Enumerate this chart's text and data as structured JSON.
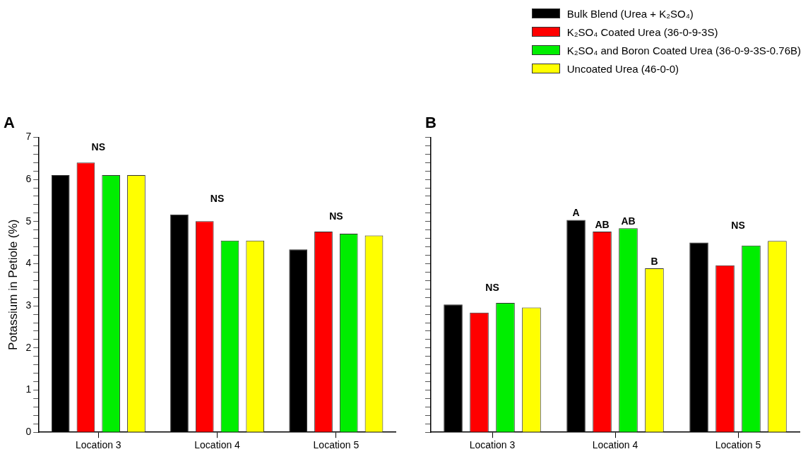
{
  "chart_data": [
    {
      "type": "bar",
      "title": "A",
      "ylabel": "Potassium in Petiole (%)",
      "categories": [
        "Location 3",
        "Location 4",
        "Location 5"
      ],
      "series": [
        {
          "name": "Bulk Blend (Urea + K₂SO₄)",
          "color": "#000000",
          "values": [
            6.1,
            5.17,
            4.34
          ]
        },
        {
          "name": "K₂SO₄ Coated Urea (36-0-9-3S)",
          "color": "#ff0000",
          "values": [
            6.4,
            5.01,
            4.76
          ]
        },
        {
          "name": "K₂SO₄ and Boron Coated Urea  (36-0-9-3S-0.76B)",
          "color": "#00ee00",
          "values": [
            6.1,
            4.55,
            4.71
          ]
        },
        {
          "name": "Uncoated Urea (46-0-0)",
          "color": "#ffff00",
          "values": [
            6.1,
            4.55,
            4.67
          ]
        }
      ],
      "ylim": [
        0,
        7
      ],
      "yticks": [
        0,
        {
          "value": 0.2,
          "label": null
        },
        {
          "value": 0.4,
          "label": null
        },
        {
          "value": 0.6,
          "label": null
        },
        {
          "value": 0.8,
          "label": null
        },
        1,
        {
          "value": 1.2,
          "label": null
        },
        {
          "value": 1.4,
          "label": null
        },
        {
          "value": 1.6,
          "label": null
        },
        {
          "value": 1.8,
          "label": null
        },
        2,
        {
          "value": 2.2,
          "label": null
        },
        {
          "value": 2.4,
          "label": null
        },
        {
          "value": 2.6,
          "label": null
        },
        {
          "value": 2.8,
          "label": null
        },
        3,
        {
          "value": 3.2,
          "label": null
        },
        {
          "value": 3.4,
          "label": null
        },
        {
          "value": 3.6,
          "label": null
        },
        {
          "value": 3.8,
          "label": null
        },
        4,
        {
          "value": 4.2,
          "label": null
        },
        {
          "value": 4.4,
          "label": null
        },
        {
          "value": 4.6,
          "label": null
        },
        {
          "value": 4.8,
          "label": null
        },
        5,
        {
          "value": 5.2,
          "label": null
        },
        {
          "value": 5.4,
          "label": null
        },
        {
          "value": 5.6,
          "label": null
        },
        {
          "value": 5.8,
          "label": null
        },
        6,
        {
          "value": 6.2,
          "label": null
        },
        {
          "value": 6.4,
          "label": null
        },
        {
          "value": 6.6,
          "label": null
        },
        {
          "value": 6.8,
          "label": null
        },
        7
      ],
      "annotations": [
        "NS",
        "NS",
        "NS"
      ],
      "grid": false,
      "legend": "top right"
    },
    {
      "type": "bar",
      "title": "B",
      "categories": [
        "Location 3",
        "Location 4",
        "Location 5"
      ],
      "series": [
        {
          "name": "Bulk Blend (Urea + K₂SO₄)",
          "color": "#000000",
          "values": [
            3.03,
            5.04,
            4.5
          ],
          "value_labels": [
            null,
            "A",
            null
          ]
        },
        {
          "name": "K₂SO₄ Coated Urea (36-0-9-3S)",
          "color": "#ff0000",
          "values": [
            2.84,
            4.76,
            3.96
          ],
          "value_labels": [
            null,
            "AB",
            null
          ]
        },
        {
          "name": "K₂SO₄ and Boron Coated Urea  (36-0-9-3S-0.76B)",
          "color": "#00ee00",
          "values": [
            3.07,
            4.84,
            4.43
          ],
          "value_labels": [
            null,
            "AB",
            null
          ]
        },
        {
          "name": "Uncoated Urea (46-0-0)",
          "color": "#ffff00",
          "values": [
            2.96,
            3.89,
            4.54
          ],
          "value_labels": [
            null,
            "B",
            null
          ]
        }
      ],
      "ylim": [
        0,
        7
      ],
      "yticks": [
        0,
        {
          "value": 0.2,
          "label": null
        },
        {
          "value": 0.4,
          "label": null
        },
        {
          "value": 0.6,
          "label": null
        },
        {
          "value": 0.8,
          "label": null
        },
        1,
        {
          "value": 1.2,
          "label": null
        },
        {
          "value": 1.4,
          "label": null
        },
        {
          "value": 1.6,
          "label": null
        },
        {
          "value": 1.8,
          "label": null
        },
        2,
        {
          "value": 2.2,
          "label": null
        },
        {
          "value": 2.4,
          "label": null
        },
        {
          "value": 2.6,
          "label": null
        },
        {
          "value": 2.8,
          "label": null
        },
        3,
        {
          "value": 3.2,
          "label": null
        },
        {
          "value": 3.4,
          "label": null
        },
        {
          "value": 3.6,
          "label": null
        },
        {
          "value": 3.8,
          "label": null
        },
        4,
        {
          "value": 4.2,
          "label": null
        },
        {
          "value": 4.4,
          "label": null
        },
        {
          "value": 4.6,
          "label": null
        },
        {
          "value": 4.8,
          "label": null
        },
        5,
        {
          "value": 5.2,
          "label": null
        },
        {
          "value": 5.4,
          "label": null
        },
        {
          "value": 5.6,
          "label": null
        },
        {
          "value": 5.8,
          "label": null
        },
        6,
        {
          "value": 6.2,
          "label": null
        },
        {
          "value": 6.4,
          "label": null
        },
        {
          "value": 6.6,
          "label": null
        },
        {
          "value": 6.8,
          "label": null
        },
        7
      ],
      "tick_labels": "x",
      "annotations": [
        "NS",
        "NS"
      ],
      "grid": false,
      "legend": "top right"
    }
  ]
}
